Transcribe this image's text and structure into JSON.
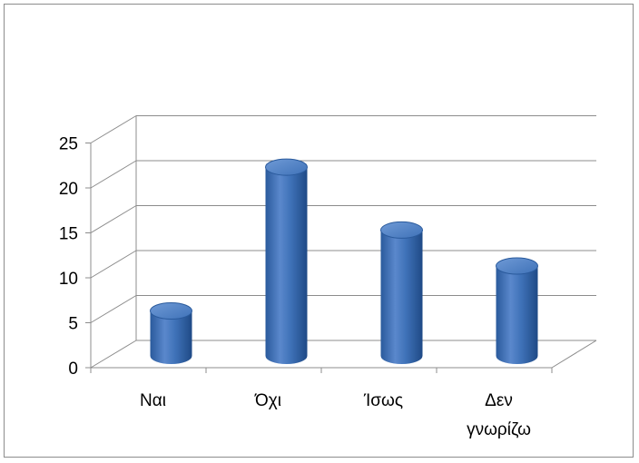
{
  "chart_data": {
    "type": "bar",
    "style": "3d-cylinder",
    "categories": [
      "Ναι",
      "Όχι",
      "Ίσως",
      "Δεν γνωρίζω"
    ],
    "category_lines": [
      [
        "Ναι"
      ],
      [
        "Όχι"
      ],
      [
        "Ίσως"
      ],
      [
        "Δεν",
        "γνωρίζω"
      ]
    ],
    "values": [
      5,
      21,
      14,
      10
    ],
    "yticks": [
      0,
      5,
      10,
      15,
      20,
      25
    ],
    "ylim": [
      0,
      25
    ],
    "grid": true,
    "legend": "none",
    "title": "",
    "xlabel": "",
    "ylabel": "",
    "colors": {
      "bar_main": "#3f72b8",
      "bar_light": "#6f9ad6",
      "bar_dark": "#1f4a86",
      "grid": "#8c8c8c"
    }
  }
}
